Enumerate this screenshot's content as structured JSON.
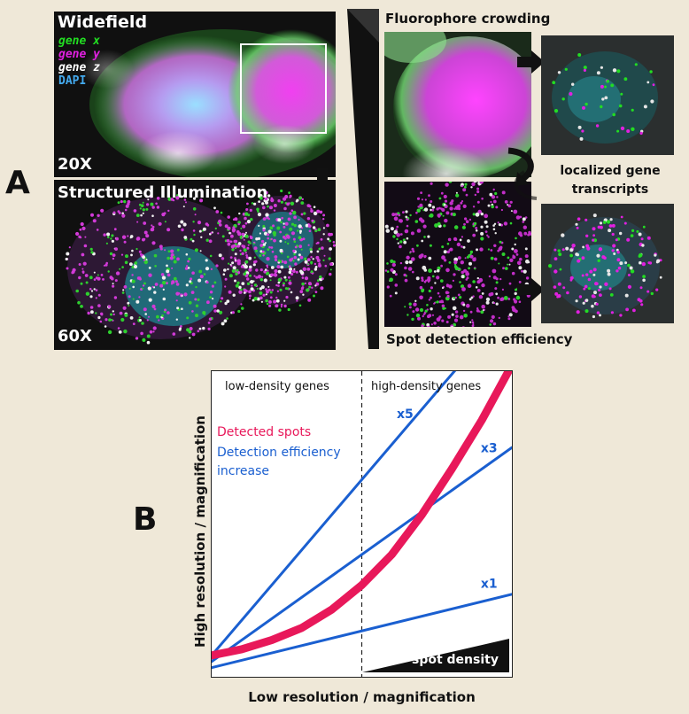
{
  "panel_a": {
    "letter": "A",
    "widefield": {
      "title": "Widefield",
      "magnification": "20X",
      "legend": [
        {
          "text": "gene x",
          "color": "#22dd22"
        },
        {
          "text": "gene y",
          "color": "#e020e0"
        },
        {
          "text": "gene z",
          "color": "#ffffff"
        },
        {
          "text": "DAPI",
          "color": "#44aaee"
        }
      ]
    },
    "sim": {
      "title": "Structured Illumination",
      "magnification": "60X"
    },
    "fluorophore_caption": "Fluorophore crowding",
    "localized_caption": "localized gene transcripts",
    "spot_caption": "Spot detection efficiency"
  },
  "panel_b": {
    "letter": "B",
    "low_density_label": "low-density genes",
    "high_density_label": "high-density genes",
    "legend_detected": "Detected spots",
    "legend_efficiency": "Detection efficiency increase",
    "spot_density_label": "spot density",
    "y_axis_label": "High resolution / magnification",
    "x_axis_label": "Low resolution / magnification",
    "colors": {
      "detected": "#e8185a",
      "efficiency": "#1a5fd0"
    }
  },
  "chart_data": {
    "type": "line",
    "title": "",
    "xlabel": "Low resolution / magnification",
    "ylabel": "High resolution / magnification",
    "xlim": [
      0,
      1
    ],
    "ylim": [
      0,
      1
    ],
    "threshold_x": 0.5,
    "series": [
      {
        "name": "x1",
        "x": [
          0,
          1
        ],
        "y": [
          0.03,
          0.27
        ]
      },
      {
        "name": "x3",
        "x": [
          0,
          1
        ],
        "y": [
          0.05,
          0.75
        ]
      },
      {
        "name": "x5",
        "x": [
          0,
          1
        ],
        "y": [
          0.07,
          1.22
        ]
      },
      {
        "name": "Detected spots",
        "x": [
          0,
          0.1,
          0.2,
          0.3,
          0.4,
          0.5,
          0.6,
          0.7,
          0.8,
          0.9,
          1.0
        ],
        "y": [
          0.07,
          0.09,
          0.12,
          0.16,
          0.22,
          0.3,
          0.4,
          0.53,
          0.68,
          0.84,
          1.02
        ]
      }
    ]
  }
}
